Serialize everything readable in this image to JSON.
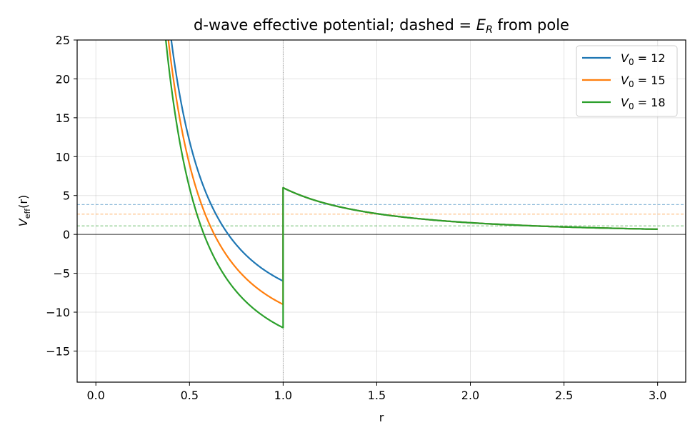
{
  "chart_data": {
    "type": "line",
    "title_prefix": "d-wave effective potential; dashed = ",
    "title_math_base": "E",
    "title_math_sub": "R",
    "title_suffix": " from pole",
    "xlabel": "r",
    "ylabel_base": "V",
    "ylabel_sub": "eff",
    "ylabel_suffix": "(r)",
    "xlim": [
      -0.1,
      3.15
    ],
    "ylim": [
      -19,
      25
    ],
    "x_ticks": [
      0.0,
      0.5,
      1.0,
      1.5,
      2.0,
      2.5,
      3.0
    ],
    "x_tick_labels": [
      "0.0",
      "0.5",
      "1.0",
      "1.5",
      "2.0",
      "2.5",
      "3.0"
    ],
    "y_ticks": [
      -15,
      -10,
      -5,
      0,
      5,
      10,
      15,
      20,
      25
    ],
    "y_tick_labels": [
      "−15",
      "−10",
      "−5",
      "0",
      "5",
      "10",
      "15",
      "20",
      "25"
    ],
    "grid": true,
    "legend_position": "top-right",
    "well_edge_r": 1.0,
    "barrier_coefficient": 6,
    "series": [
      {
        "name_base": "V",
        "name_sub": "0",
        "name_suffix": " = 12",
        "V0": 12,
        "E_R": 3.85,
        "color": "#1f77b4"
      },
      {
        "name_base": "V",
        "name_sub": "0",
        "name_suffix": " = 15",
        "V0": 15,
        "E_R": 2.6,
        "color": "#ff7f0e"
      },
      {
        "name_base": "V",
        "name_sub": "0",
        "name_suffix": " = 18",
        "V0": 18,
        "E_R": 1.1,
        "color": "#2ca02c"
      }
    ]
  }
}
